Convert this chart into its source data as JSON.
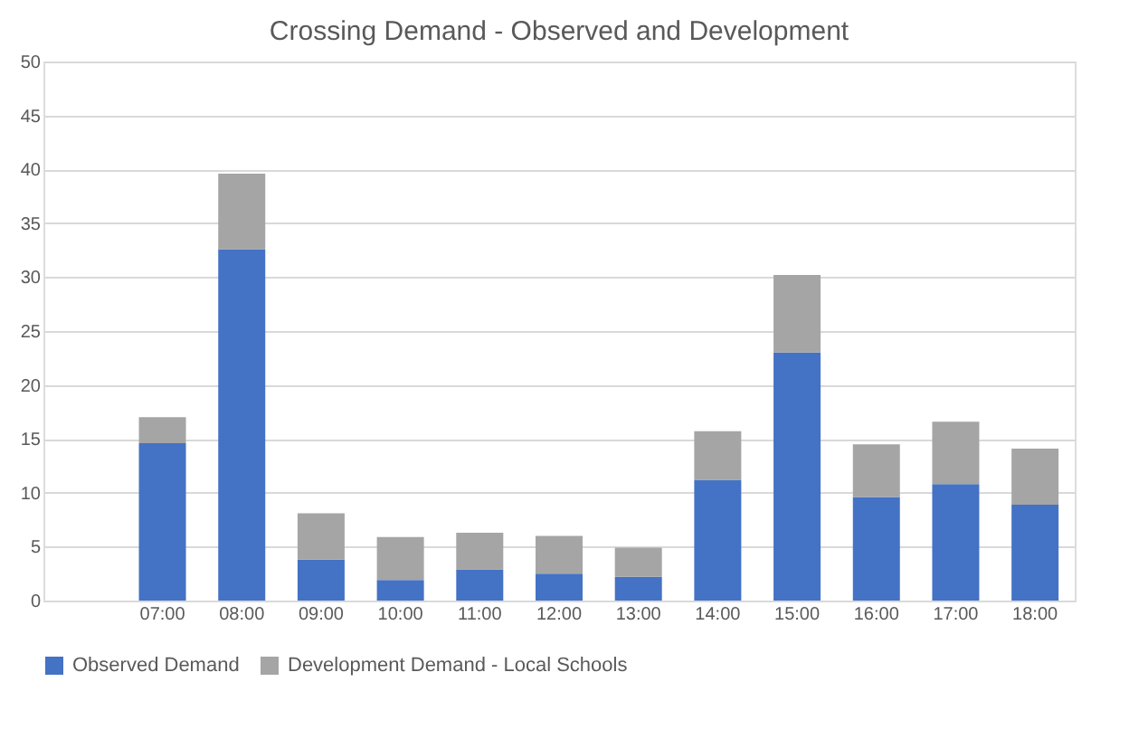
{
  "chart_data": {
    "type": "bar",
    "title": "Crossing Demand - Observed and Development",
    "stacked": true,
    "categories": [
      null,
      "07:00",
      "08:00",
      "09:00",
      "10:00",
      "11:00",
      "12:00",
      "13:00",
      "14:00",
      "15:00",
      "16:00",
      "17:00",
      "18:00"
    ],
    "series": [
      {
        "name": "Observed Demand",
        "color": "#4472c4",
        "values": [
          null,
          14.6,
          32.6,
          3.8,
          1.9,
          2.9,
          2.5,
          2.2,
          11.2,
          23.0,
          9.6,
          10.8,
          8.9
        ]
      },
      {
        "name": "Development Demand - Local Schools",
        "color": "#a5a5a5",
        "values": [
          null,
          2.4,
          7.0,
          4.3,
          4.0,
          3.4,
          3.5,
          2.7,
          4.5,
          7.2,
          4.9,
          5.8,
          5.2
        ]
      }
    ],
    "ylim": [
      0,
      50
    ],
    "yticks": [
      0,
      5,
      10,
      15,
      20,
      25,
      30,
      35,
      40,
      45,
      50
    ],
    "grid": "y",
    "legend": "bottom"
  }
}
